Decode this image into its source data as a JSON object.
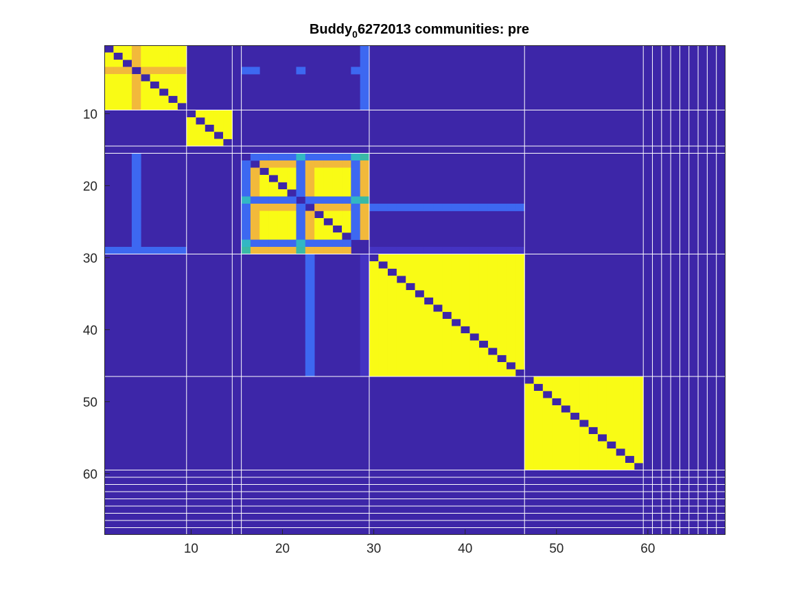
{
  "chart_data": {
    "type": "heatmap",
    "title": {
      "before": "Buddy",
      "subscript": "0",
      "after": "6272013 communities: pre"
    },
    "n": 68,
    "xlim": [
      0.5,
      68.5
    ],
    "ylim": [
      0.5,
      68.5
    ],
    "y_direction": "reverse",
    "xticks": [
      10,
      20,
      30,
      40,
      50,
      60
    ],
    "yticks": [
      10,
      20,
      30,
      40,
      50,
      60
    ],
    "background_value": 0,
    "colors": {
      "background": "#3d26a8",
      "high": "#f9fb15",
      "mid_high": "#f2b93b",
      "mid": "#32b7c4",
      "teal": "#3ab9a6",
      "low": "#3d68f1",
      "very_low": "#4433c2",
      "divider": "#ffffff"
    },
    "value_scale": [
      {
        "value": 0,
        "color": "#3d26a8"
      },
      {
        "value": 0.15,
        "color": "#4433c2"
      },
      {
        "value": 0.25,
        "color": "#3d68f1"
      },
      {
        "value": 0.5,
        "color": "#32b7c4"
      },
      {
        "value": 0.55,
        "color": "#3ab9a6"
      },
      {
        "value": 0.8,
        "color": "#f2b93b"
      },
      {
        "value": 1,
        "color": "#f9fb15"
      }
    ],
    "blocks": [
      {
        "rows": [
          1,
          9
        ],
        "cols": [
          1,
          9
        ],
        "value": 1
      },
      {
        "rows": [
          1,
          9
        ],
        "cols": [
          4,
          4
        ],
        "value": 0.8
      },
      {
        "rows": [
          4,
          4
        ],
        "cols": [
          1,
          9
        ],
        "value": 0.8
      },
      {
        "rows": [
          10,
          14
        ],
        "cols": [
          10,
          14
        ],
        "value": 1
      },
      {
        "rows": [
          16,
          28
        ],
        "cols": [
          16,
          28
        ],
        "value": 1
      },
      {
        "rows": [
          16,
          28
        ],
        "cols": [
          17,
          17
        ],
        "value": 0.8
      },
      {
        "rows": [
          16,
          28
        ],
        "cols": [
          29,
          29
        ],
        "value": 0.8
      },
      {
        "rows": [
          16,
          28
        ],
        "cols": [
          23,
          23
        ],
        "value": 0.8
      },
      {
        "rows": [
          17,
          17
        ],
        "cols": [
          16,
          29
        ],
        "value": 0.8
      },
      {
        "rows": [
          23,
          23
        ],
        "cols": [
          16,
          29
        ],
        "value": 0.8
      },
      {
        "rows": [
          29,
          29
        ],
        "cols": [
          16,
          29
        ],
        "value": 0.8
      },
      {
        "rows": [
          16,
          29
        ],
        "cols": [
          16,
          16
        ],
        "value": 0.25
      },
      {
        "rows": [
          16,
          29
        ],
        "cols": [
          22,
          22
        ],
        "value": 0.25
      },
      {
        "rows": [
          16,
          29
        ],
        "cols": [
          28,
          28
        ],
        "value": 0.25
      },
      {
        "rows": [
          16,
          16
        ],
        "cols": [
          16,
          29
        ],
        "value": 0.25
      },
      {
        "rows": [
          22,
          22
        ],
        "cols": [
          16,
          29
        ],
        "value": 0.25
      },
      {
        "rows": [
          28,
          28
        ],
        "cols": [
          16,
          29
        ],
        "value": 0.25
      },
      {
        "rows": [
          30,
          46
        ],
        "cols": [
          30,
          46
        ],
        "value": 1
      },
      {
        "rows": [
          47,
          59
        ],
        "cols": [
          47,
          59
        ],
        "value": 1
      },
      {
        "rows": [
          1,
          9
        ],
        "cols": [
          29,
          29
        ],
        "value": 0.25
      },
      {
        "rows": [
          16,
          28
        ],
        "cols": [
          4,
          4
        ],
        "value": 0.25
      },
      {
        "rows": [
          30,
          46
        ],
        "cols": [
          23,
          23
        ],
        "value": 0.25
      },
      {
        "rows": [
          23,
          23
        ],
        "cols": [
          30,
          46
        ],
        "value": 0.25
      },
      {
        "rows": [
          29,
          29
        ],
        "cols": [
          1,
          9
        ],
        "value": 0.25
      },
      {
        "rows": [
          30,
          46
        ],
        "cols": [
          29,
          29
        ],
        "value": 0.15
      },
      {
        "rows": [
          29,
          29
        ],
        "cols": [
          30,
          46
        ],
        "value": 0.15
      }
    ],
    "cells": [
      {
        "row": 4,
        "col": 16,
        "value": 0.25
      },
      {
        "row": 4,
        "col": 17,
        "value": 0.25
      },
      {
        "row": 4,
        "col": 22,
        "value": 0.25
      },
      {
        "row": 4,
        "col": 28,
        "value": 0.25
      },
      {
        "row": 16,
        "col": 16,
        "value": 0.5
      },
      {
        "row": 16,
        "col": 22,
        "value": 0.5
      },
      {
        "row": 16,
        "col": 28,
        "value": 0.5
      },
      {
        "row": 16,
        "col": 29,
        "value": 0.55
      },
      {
        "row": 22,
        "col": 16,
        "value": 0.5
      },
      {
        "row": 22,
        "col": 22,
        "value": 0.5
      },
      {
        "row": 22,
        "col": 28,
        "value": 0.5
      },
      {
        "row": 22,
        "col": 29,
        "value": 0.55
      },
      {
        "row": 28,
        "col": 16,
        "value": 0.5
      },
      {
        "row": 28,
        "col": 22,
        "value": 0.5
      },
      {
        "row": 28,
        "col": 28,
        "value": 0.5
      },
      {
        "row": 29,
        "col": 16,
        "value": 0.55
      },
      {
        "row": 29,
        "col": 22,
        "value": 0.55
      },
      {
        "row": 28,
        "col": 29,
        "value": 0
      },
      {
        "row": 29,
        "col": 28,
        "value": 0
      },
      {
        "row": 29,
        "col": 29,
        "value": 0
      }
    ],
    "diagonal_value": 0,
    "community_boundaries": [
      9.5,
      14.5,
      15.5,
      29.5,
      46.5,
      59.5,
      60.5,
      61.5,
      62.5,
      63.5,
      64.5,
      65.5,
      66.5,
      67.5
    ],
    "grid": false
  }
}
